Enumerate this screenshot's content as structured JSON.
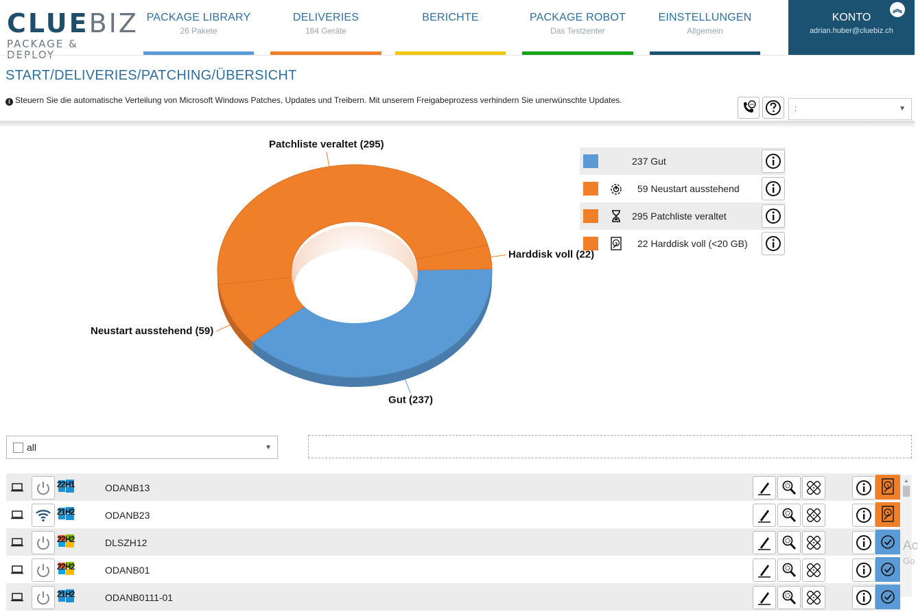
{
  "brand": {
    "line1a": "CLUE",
    "line1b": "BIZ",
    "line2": "PACKAGE & DEPLOY"
  },
  "nav": [
    {
      "title": "PACKAGE LIBRARY",
      "sub": "26 Pakete",
      "color": "#5b9bd5"
    },
    {
      "title": "DELIVERIES",
      "sub": "184 Geräte",
      "color": "#f07f2a"
    },
    {
      "title": "BERICHTE",
      "sub": "",
      "color": "#f2c80f"
    },
    {
      "title": "PACKAGE ROBOT",
      "sub": "Das Testzenter",
      "color": "#16a316"
    },
    {
      "title": "EINSTELLUNGEN",
      "sub": "Allgemein",
      "color": "#1b5171"
    }
  ],
  "account": {
    "title": "KONTO",
    "email": "adrian.huber@cluebiz.ch"
  },
  "breadcrumb": "START/DELIVERIES/PATCHING/ÜBERSICHT",
  "description": "Steuern Sie die automatische Verteilung von Microsoft Windows Patches, Updates und Treibern. Mit unserem Freigabeprozess verhindern Sie unerwünschte Updates.",
  "top_select_value": ":",
  "chart_data": {
    "type": "pie",
    "donut": true,
    "slices": [
      {
        "label": "Gut (237)",
        "value": 237,
        "color": "#5b9bd5"
      },
      {
        "label": "Neustart ausstehend (59)",
        "value": 59,
        "color": "#f07f2a"
      },
      {
        "label": "Patchliste veraltet (295)",
        "value": 295,
        "color": "#f07f2a"
      },
      {
        "label": "Harddisk voll (22)",
        "value": 22,
        "color": "#f07f2a"
      }
    ]
  },
  "legend": [
    {
      "text": "237 Gut",
      "color": "#5b9bd5",
      "icon": ""
    },
    {
      "text": "59 Neustart ausstehend",
      "color": "#f07f2a",
      "icon": "restart-pending-icon"
    },
    {
      "text": "295 Patchliste veraltet",
      "color": "#f07f2a",
      "icon": "hourglass-icon"
    },
    {
      "text": "22 Harddisk voll (<20 GB)",
      "color": "#f07f2a",
      "icon": "harddisk-icon"
    }
  ],
  "filter": {
    "label": "all"
  },
  "devices": [
    {
      "name": "ODANB13",
      "os": "22H1",
      "connection": "power",
      "logo": "win10",
      "status": "disk-full"
    },
    {
      "name": "ODANB23",
      "os": "21H2",
      "connection": "wifi",
      "logo": "win10",
      "status": "disk-full"
    },
    {
      "name": "DLSZH12",
      "os": "22H2",
      "connection": "power",
      "logo": "win11",
      "status": "ok"
    },
    {
      "name": "ODANB01",
      "os": "22H2",
      "connection": "power",
      "logo": "win11",
      "status": "ok"
    },
    {
      "name": "ODANB0111-01",
      "os": "21H2",
      "connection": "power",
      "logo": "win10",
      "status": "ok"
    }
  ],
  "side_text": {
    "a": "Ac",
    "b": "Go"
  }
}
